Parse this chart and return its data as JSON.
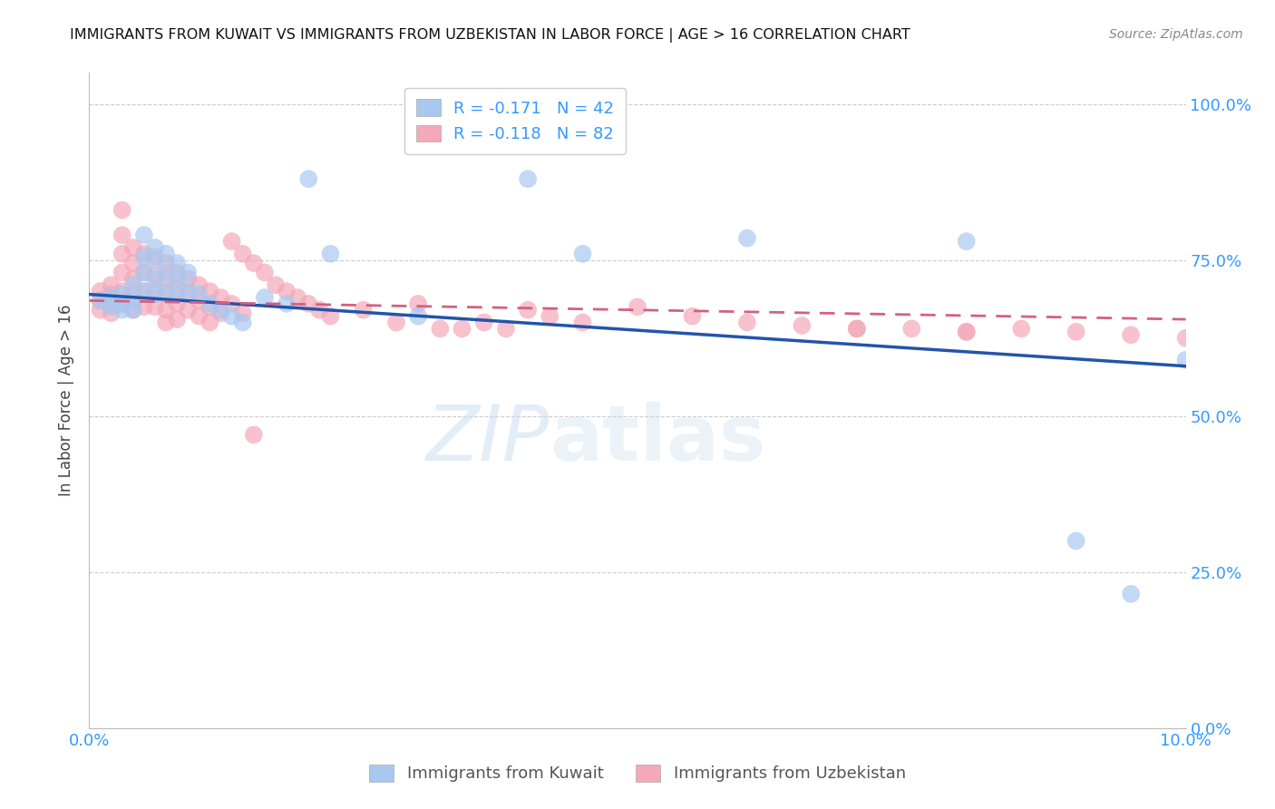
{
  "title": "IMMIGRANTS FROM KUWAIT VS IMMIGRANTS FROM UZBEKISTAN IN LABOR FORCE | AGE > 16 CORRELATION CHART",
  "source": "Source: ZipAtlas.com",
  "ylabel": "In Labor Force | Age > 16",
  "xlim": [
    0.0,
    0.1
  ],
  "ylim": [
    0.0,
    1.05
  ],
  "yticks": [
    0.0,
    0.25,
    0.5,
    0.75,
    1.0
  ],
  "ytick_labels": [
    "0.0%",
    "25.0%",
    "50.0%",
    "75.0%",
    "100.0%"
  ],
  "xticks": [
    0.0,
    0.02,
    0.04,
    0.06,
    0.08,
    0.1
  ],
  "xtick_labels": [
    "0.0%",
    "",
    "",
    "",
    "",
    "10.0%"
  ],
  "watermark_part1": "ZIP",
  "watermark_part2": "atlas",
  "kuwait_color": "#a8c8f0",
  "uzbekistan_color": "#f4a8b8",
  "kuwait_fill": "#a8c8f0",
  "uzbekistan_fill": "#f4a8b8",
  "kuwait_line_color": "#2255aa",
  "uzbekistan_line_color": "#d46080",
  "background_color": "#ffffff",
  "grid_color": "#cccccc",
  "axis_color": "#3399ff",
  "title_color": "#111111",
  "kuwait_points": [
    [
      0.001,
      0.685
    ],
    [
      0.002,
      0.69
    ],
    [
      0.002,
      0.675
    ],
    [
      0.003,
      0.695
    ],
    [
      0.003,
      0.68
    ],
    [
      0.003,
      0.67
    ],
    [
      0.004,
      0.71
    ],
    [
      0.004,
      0.685
    ],
    [
      0.004,
      0.67
    ],
    [
      0.005,
      0.79
    ],
    [
      0.005,
      0.755
    ],
    [
      0.005,
      0.73
    ],
    [
      0.005,
      0.7
    ],
    [
      0.006,
      0.77
    ],
    [
      0.006,
      0.75
    ],
    [
      0.006,
      0.72
    ],
    [
      0.006,
      0.695
    ],
    [
      0.007,
      0.76
    ],
    [
      0.007,
      0.73
    ],
    [
      0.007,
      0.7
    ],
    [
      0.008,
      0.745
    ],
    [
      0.008,
      0.72
    ],
    [
      0.008,
      0.695
    ],
    [
      0.009,
      0.73
    ],
    [
      0.009,
      0.7
    ],
    [
      0.01,
      0.695
    ],
    [
      0.011,
      0.68
    ],
    [
      0.012,
      0.67
    ],
    [
      0.013,
      0.66
    ],
    [
      0.014,
      0.65
    ],
    [
      0.016,
      0.69
    ],
    [
      0.018,
      0.68
    ],
    [
      0.02,
      0.88
    ],
    [
      0.022,
      0.76
    ],
    [
      0.03,
      0.66
    ],
    [
      0.04,
      0.88
    ],
    [
      0.045,
      0.76
    ],
    [
      0.06,
      0.785
    ],
    [
      0.08,
      0.78
    ],
    [
      0.09,
      0.3
    ],
    [
      0.095,
      0.215
    ],
    [
      0.1,
      0.59
    ]
  ],
  "uzbekistan_points": [
    [
      0.001,
      0.7
    ],
    [
      0.001,
      0.685
    ],
    [
      0.001,
      0.67
    ],
    [
      0.002,
      0.71
    ],
    [
      0.002,
      0.695
    ],
    [
      0.002,
      0.68
    ],
    [
      0.002,
      0.665
    ],
    [
      0.003,
      0.83
    ],
    [
      0.003,
      0.79
    ],
    [
      0.003,
      0.76
    ],
    [
      0.003,
      0.73
    ],
    [
      0.003,
      0.7
    ],
    [
      0.003,
      0.68
    ],
    [
      0.004,
      0.77
    ],
    [
      0.004,
      0.745
    ],
    [
      0.004,
      0.72
    ],
    [
      0.004,
      0.695
    ],
    [
      0.004,
      0.67
    ],
    [
      0.005,
      0.76
    ],
    [
      0.005,
      0.73
    ],
    [
      0.005,
      0.7
    ],
    [
      0.005,
      0.675
    ],
    [
      0.006,
      0.755
    ],
    [
      0.006,
      0.725
    ],
    [
      0.006,
      0.7
    ],
    [
      0.006,
      0.675
    ],
    [
      0.007,
      0.745
    ],
    [
      0.007,
      0.72
    ],
    [
      0.007,
      0.695
    ],
    [
      0.007,
      0.67
    ],
    [
      0.007,
      0.65
    ],
    [
      0.008,
      0.73
    ],
    [
      0.008,
      0.705
    ],
    [
      0.008,
      0.68
    ],
    [
      0.008,
      0.655
    ],
    [
      0.009,
      0.72
    ],
    [
      0.009,
      0.695
    ],
    [
      0.009,
      0.67
    ],
    [
      0.01,
      0.71
    ],
    [
      0.01,
      0.685
    ],
    [
      0.01,
      0.66
    ],
    [
      0.011,
      0.7
    ],
    [
      0.011,
      0.675
    ],
    [
      0.011,
      0.65
    ],
    [
      0.012,
      0.69
    ],
    [
      0.012,
      0.665
    ],
    [
      0.013,
      0.78
    ],
    [
      0.013,
      0.68
    ],
    [
      0.014,
      0.76
    ],
    [
      0.014,
      0.665
    ],
    [
      0.015,
      0.745
    ],
    [
      0.015,
      0.47
    ],
    [
      0.016,
      0.73
    ],
    [
      0.017,
      0.71
    ],
    [
      0.018,
      0.7
    ],
    [
      0.019,
      0.69
    ],
    [
      0.02,
      0.68
    ],
    [
      0.021,
      0.67
    ],
    [
      0.022,
      0.66
    ],
    [
      0.025,
      0.67
    ],
    [
      0.028,
      0.65
    ],
    [
      0.03,
      0.68
    ],
    [
      0.032,
      0.64
    ],
    [
      0.034,
      0.64
    ],
    [
      0.036,
      0.65
    ],
    [
      0.038,
      0.64
    ],
    [
      0.04,
      0.67
    ],
    [
      0.042,
      0.66
    ],
    [
      0.045,
      0.65
    ],
    [
      0.05,
      0.675
    ],
    [
      0.055,
      0.66
    ],
    [
      0.06,
      0.65
    ],
    [
      0.065,
      0.645
    ],
    [
      0.07,
      0.64
    ],
    [
      0.075,
      0.64
    ],
    [
      0.08,
      0.635
    ],
    [
      0.085,
      0.64
    ],
    [
      0.09,
      0.635
    ],
    [
      0.095,
      0.63
    ],
    [
      0.1,
      0.625
    ],
    [
      0.07,
      0.64
    ],
    [
      0.08,
      0.635
    ]
  ]
}
